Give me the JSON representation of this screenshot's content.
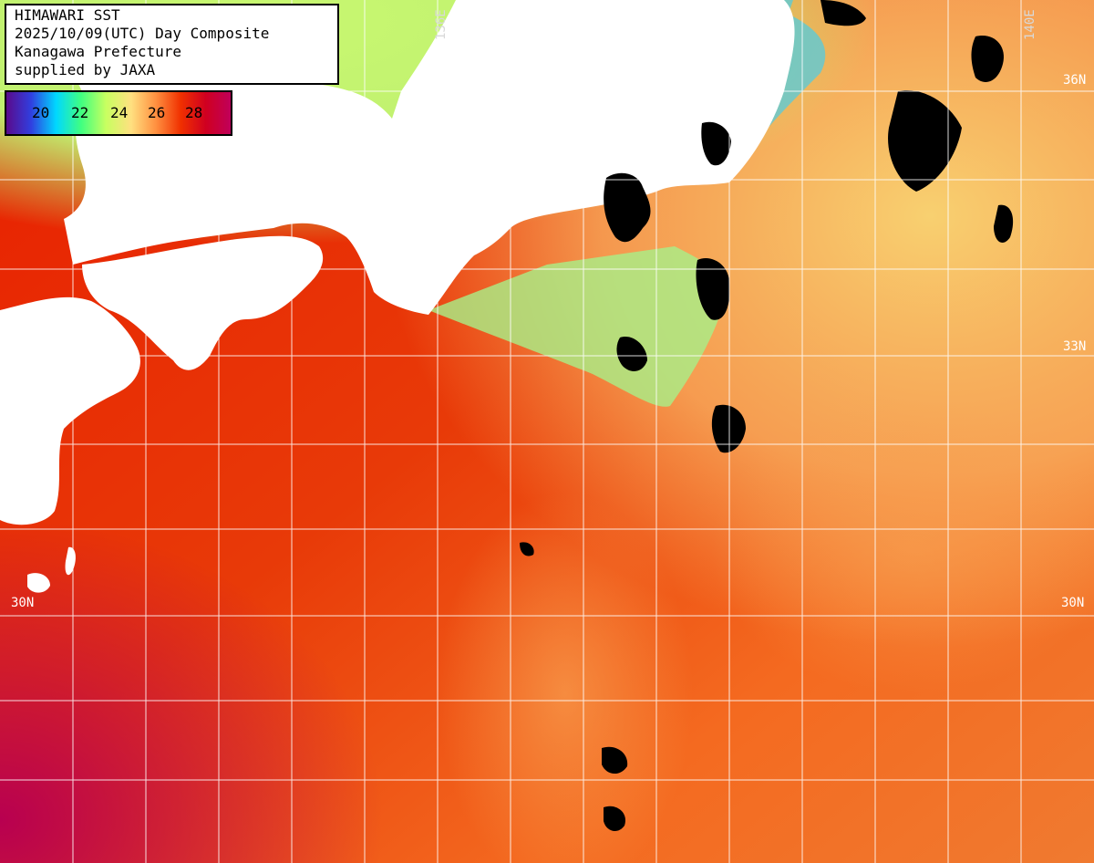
{
  "title_box": {
    "lines": [
      "HIMAWARI SST",
      "2025/10/09(UTC) Day Composite",
      "Kanagawa Prefecture",
      "supplied by JAXA"
    ]
  },
  "legend": {
    "ticks": [
      "20",
      "22",
      "24",
      "26",
      "28"
    ],
    "colors": [
      "#5a0a8c",
      "#3040e0",
      "#00d8ff",
      "#40ff80",
      "#c8ff60",
      "#ffe080",
      "#ff9040",
      "#f03000",
      "#d00020",
      "#c0005a"
    ]
  },
  "grid_labels": {
    "lat_30n_left": "30N",
    "lat_30n_right": "30N",
    "lat_33n_right": "33N",
    "lat_36n_right": "36N",
    "lon_136e_top": "136E",
    "lon_140e_top": "140E"
  },
  "colors": {
    "land": "#ffffff",
    "grid": "#ffffff",
    "cloud": "#000000",
    "warm_sea": "#e02000",
    "cool_sea": "#b0f070"
  }
}
